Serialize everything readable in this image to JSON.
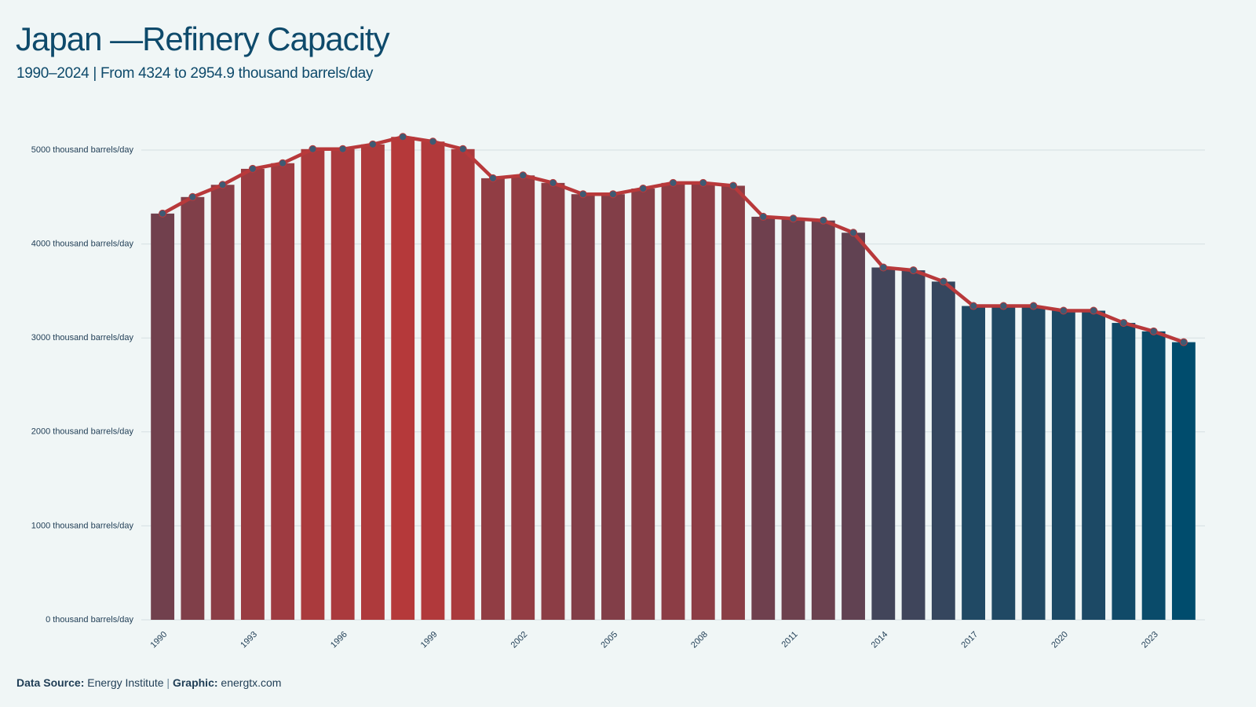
{
  "chart_data": {
    "type": "bar_line",
    "title": "Japan —Refinery Capacity",
    "subtitle": "1990–2024 | From 4324 to 2954.9 thousand barrels/day",
    "categories": [
      "1990",
      null,
      null,
      "1993",
      null,
      null,
      "1996",
      null,
      null,
      "1999",
      null,
      null,
      "2002",
      null,
      null,
      "2005",
      null,
      null,
      "2008",
      null,
      null,
      "2011",
      null,
      null,
      "2014",
      null,
      null,
      "2017",
      null,
      null,
      "2020",
      null,
      null,
      "2023",
      null
    ],
    "values": [
      4324,
      4500,
      4630,
      4800,
      4860,
      5010,
      5010,
      5060,
      5140,
      5090,
      5010,
      4700,
      4730,
      4650,
      4530,
      4530,
      4590,
      4650,
      4650,
      4620,
      4290,
      4270,
      4250,
      4120,
      3750,
      3720,
      3600,
      3340,
      3340,
      3340,
      3290,
      3290,
      3160,
      3070,
      2954.9
    ],
    "color_low": "#004c6d",
    "color_high": "#b5393a",
    "line_color": "#b8393b",
    "marker_color": "#3f5a73",
    "ylim": [
      0,
      5000
    ],
    "yticks": [
      {
        "value": 0,
        "label": "0 thousand barrels/day"
      },
      {
        "value": 1000,
        "label": "1000 thousand barrels/day"
      },
      {
        "value": 2000,
        "label": "2000 thousand barrels/day"
      },
      {
        "value": 3000,
        "label": "3000 thousand barrels/day"
      },
      {
        "value": 4000,
        "label": "4000 thousand barrels/day"
      },
      {
        "value": 5000,
        "label": "5000 thousand barrels/day"
      }
    ],
    "grid": true,
    "footer": {
      "source_label": "Data Source:",
      "source": "Energy Institute",
      "separator": "|",
      "graphic_label": "Graphic:",
      "graphic": "energtx.com"
    }
  }
}
